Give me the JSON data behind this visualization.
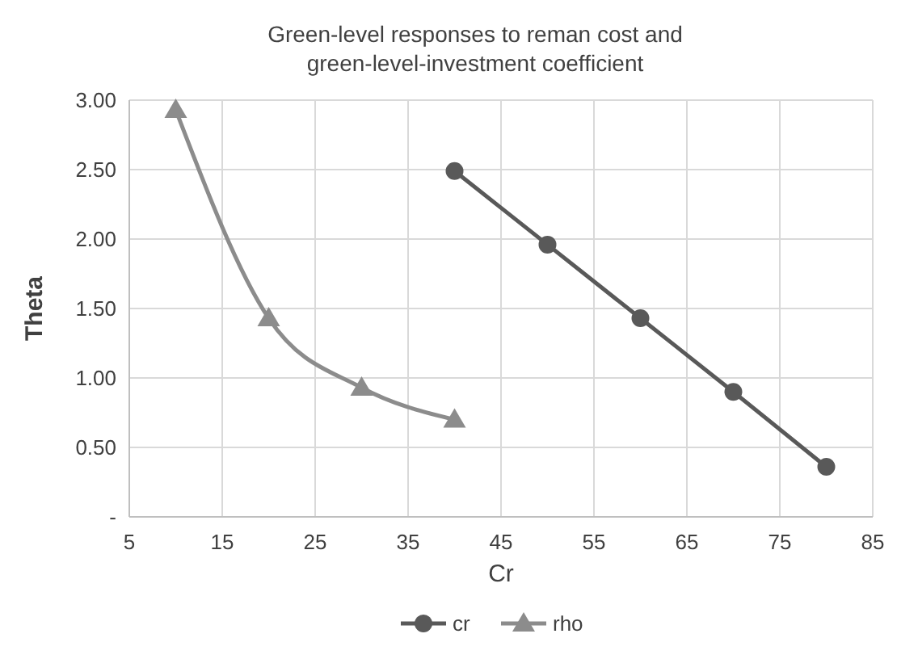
{
  "chart_data": {
    "type": "line",
    "title": "Green-level responses to reman cost and green-level-investment coefficient",
    "xlabel": "Cr",
    "ylabel": "Theta",
    "xlim": [
      5,
      85
    ],
    "xticks": [
      5,
      15,
      25,
      35,
      45,
      55,
      65,
      75,
      85
    ],
    "ylim": [
      0,
      3
    ],
    "yticks": [
      {
        "value": 0,
        "label": "-"
      },
      {
        "value": 0.5,
        "label": "0.50"
      },
      {
        "value": 1,
        "label": "1.00"
      },
      {
        "value": 1.5,
        "label": "1.50"
      },
      {
        "value": 2,
        "label": "2.00"
      },
      {
        "value": 2.5,
        "label": "2.50"
      },
      {
        "value": 3,
        "label": "3.00"
      }
    ],
    "grid": true,
    "legend": "bottom",
    "line_style": "solid",
    "series": [
      {
        "name": "cr",
        "color": "#595959",
        "marker": "circle",
        "x": [
          40,
          50,
          60,
          70,
          80
        ],
        "values": [
          2.49,
          1.96,
          1.43,
          0.9,
          0.36
        ]
      },
      {
        "name": "rho",
        "color": "#8c8c8c",
        "marker": "triangle",
        "x": [
          10,
          20,
          30,
          40
        ],
        "values": [
          2.93,
          1.43,
          0.93,
          0.7
        ]
      }
    ]
  }
}
